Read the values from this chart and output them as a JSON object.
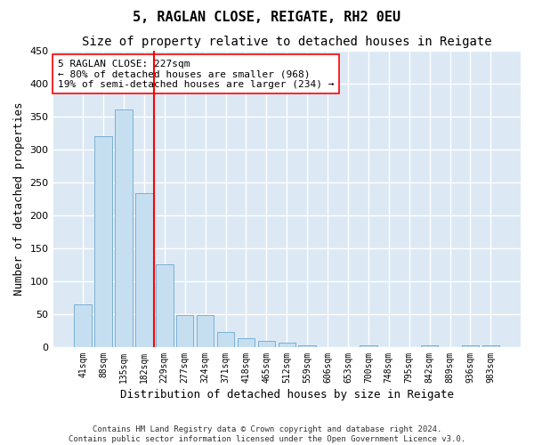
{
  "title": "5, RAGLAN CLOSE, REIGATE, RH2 0EU",
  "subtitle": "Size of property relative to detached houses in Reigate",
  "xlabel": "Distribution of detached houses by size in Reigate",
  "ylabel": "Number of detached properties",
  "categories": [
    "41sqm",
    "88sqm",
    "135sqm",
    "182sqm",
    "229sqm",
    "277sqm",
    "324sqm",
    "371sqm",
    "418sqm",
    "465sqm",
    "512sqm",
    "559sqm",
    "606sqm",
    "653sqm",
    "700sqm",
    "748sqm",
    "795sqm",
    "842sqm",
    "889sqm",
    "936sqm",
    "983sqm"
  ],
  "values": [
    65,
    320,
    360,
    233,
    125,
    49,
    49,
    23,
    13,
    9,
    6,
    3,
    0,
    0,
    3,
    0,
    0,
    3,
    0,
    3,
    3
  ],
  "bar_color": "#c6dff0",
  "bar_edge_color": "#7ab0d4",
  "bg_color": "#dce9f5",
  "grid_color": "#ffffff",
  "red_line_x": 3.5,
  "annotation_box_text": "5 RAGLAN CLOSE: 227sqm\n← 80% of detached houses are smaller (968)\n19% of semi-detached houses are larger (234) →",
  "ylim": [
    0,
    450
  ],
  "yticks": [
    0,
    50,
    100,
    150,
    200,
    250,
    300,
    350,
    400,
    450
  ],
  "footer_line1": "Contains HM Land Registry data © Crown copyright and database right 2024.",
  "footer_line2": "Contains public sector information licensed under the Open Government Licence v3.0.",
  "fig_bg_color": "#ffffff",
  "title_fontsize": 11,
  "subtitle_fontsize": 10,
  "xlabel_fontsize": 9,
  "ylabel_fontsize": 9,
  "annotation_fontsize": 8,
  "tick_fontsize": 7,
  "footer_fontsize": 6.5
}
